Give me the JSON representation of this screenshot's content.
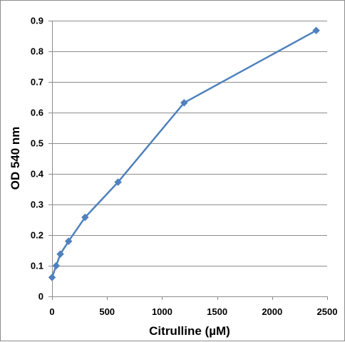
{
  "chart_data": {
    "type": "line",
    "title": "",
    "xlabel": "Citrulline (µM)",
    "ylabel": "OD 540 nm",
    "xlim": [
      0,
      2500
    ],
    "ylim": [
      0,
      0.9
    ],
    "x_ticks": [
      "0",
      "500",
      "1000",
      "1500",
      "2000",
      "2500"
    ],
    "y_ticks": [
      "0",
      "0.1",
      "0.2",
      "0.3",
      "0.4",
      "0.5",
      "0.6",
      "0.7",
      "0.8",
      "0.9"
    ],
    "grid": "horizontal",
    "legend": "none",
    "series": [
      {
        "x": [
          0,
          37.5,
          75,
          150,
          300,
          600,
          1200,
          2400
        ],
        "y": [
          0.062,
          0.1,
          0.138,
          0.18,
          0.258,
          0.373,
          0.632,
          0.868
        ],
        "marker": "diamond",
        "color": "#4f81bd"
      }
    ]
  }
}
